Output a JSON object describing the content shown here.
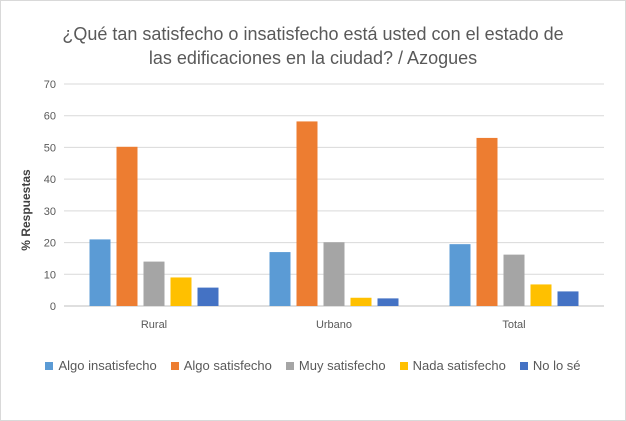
{
  "chart_data": {
    "type": "bar",
    "title_line1": "¿Qué tan satisfecho o insatisfecho está usted con el estado de",
    "title_line2": "las edificaciones en la ciudad? / Azogues",
    "ylabel": "% Respuestas",
    "xlabel": "",
    "ylim": [
      0,
      70
    ],
    "yticks": [
      0,
      10,
      20,
      30,
      40,
      50,
      60,
      70
    ],
    "grid": true,
    "legend_position": "bottom",
    "categories": [
      "Rural",
      "Urbano",
      "Total"
    ],
    "series": [
      {
        "name": "Algo insatisfecho",
        "color": "#5b9bd5",
        "values": [
          21,
          17,
          19.5
        ]
      },
      {
        "name": "Algo satisfecho",
        "color": "#ed7d31",
        "values": [
          50.2,
          58.2,
          53
        ]
      },
      {
        "name": "Muy satisfecho",
        "color": "#a5a5a5",
        "values": [
          14,
          20.1,
          16.2
        ]
      },
      {
        "name": "Nada satisfecho",
        "color": "#ffc000",
        "values": [
          9,
          2.6,
          6.8
        ]
      },
      {
        "name": "No lo sé",
        "color": "#4472c4",
        "values": [
          5.8,
          2.4,
          4.6
        ]
      }
    ]
  }
}
